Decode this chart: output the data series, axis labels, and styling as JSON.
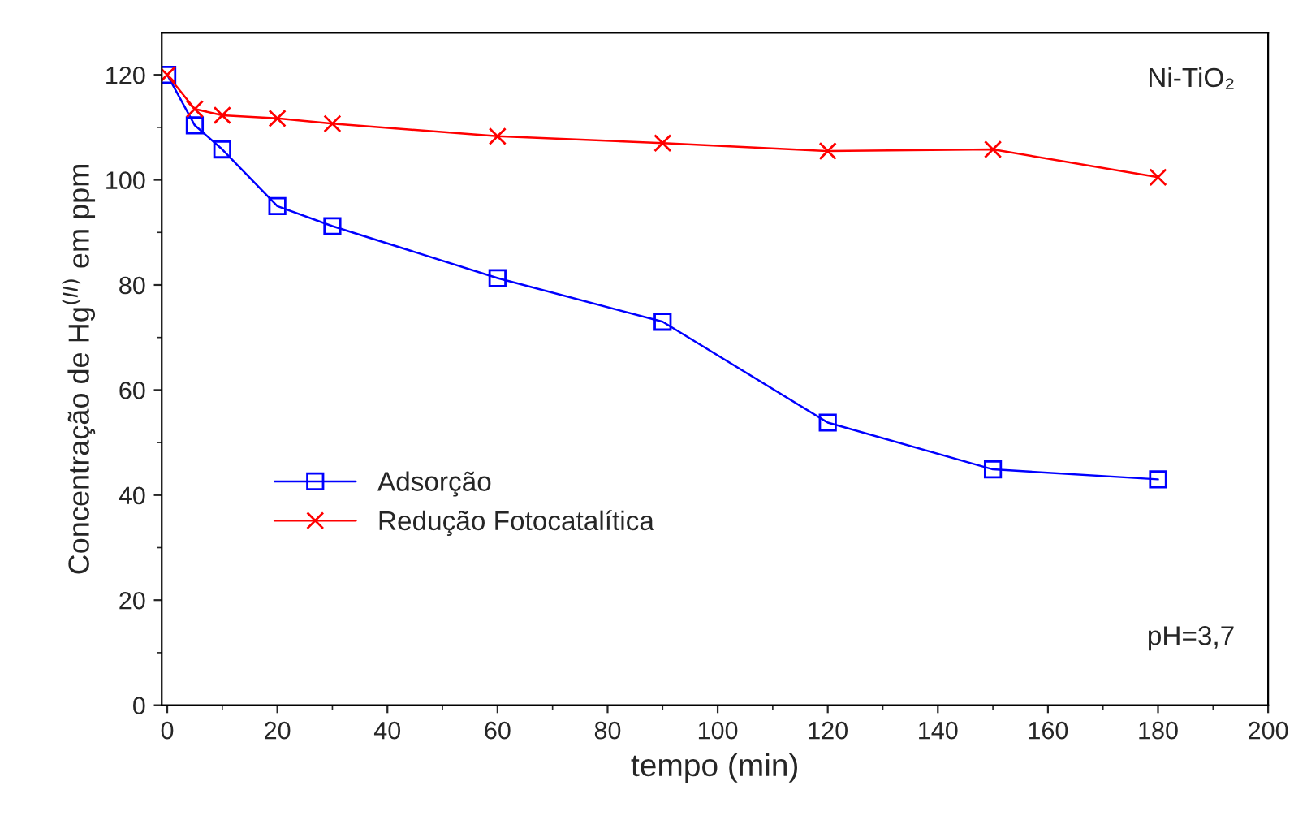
{
  "chart_data": {
    "type": "line",
    "xlabel": "tempo (min)",
    "ylabel": "Concentração de Hg$^{(II)}$ em ppm",
    "annotations": [
      "Ni-TiO₂",
      "pH=3,7"
    ],
    "xlim": [
      -1,
      200
    ],
    "xticks": [
      0,
      20,
      40,
      60,
      80,
      100,
      120,
      140,
      160,
      180,
      200
    ],
    "ylim": [
      0,
      128
    ],
    "yticks": [
      0,
      20,
      40,
      60,
      80,
      100,
      120
    ],
    "grid": false,
    "legend": "center left",
    "series": [
      {
        "name": "Adsorção",
        "color": "#0000ff",
        "marker": "square",
        "x": [
          0,
          5,
          10,
          20,
          30,
          60,
          90,
          120,
          150,
          180
        ],
        "values": [
          120,
          110.4,
          105.8,
          95,
          91.2,
          81.3,
          73,
          53.8,
          44.9,
          43
        ]
      },
      {
        "name": "Redução Fotocatalítica",
        "color": "#ff0000",
        "marker": "cross",
        "x": [
          0,
          5,
          10,
          20,
          30,
          60,
          90,
          120,
          150,
          180
        ],
        "values": [
          120,
          113.5,
          112.3,
          111.7,
          110.7,
          108.3,
          107,
          105.5,
          105.8,
          100.5
        ]
      }
    ]
  }
}
